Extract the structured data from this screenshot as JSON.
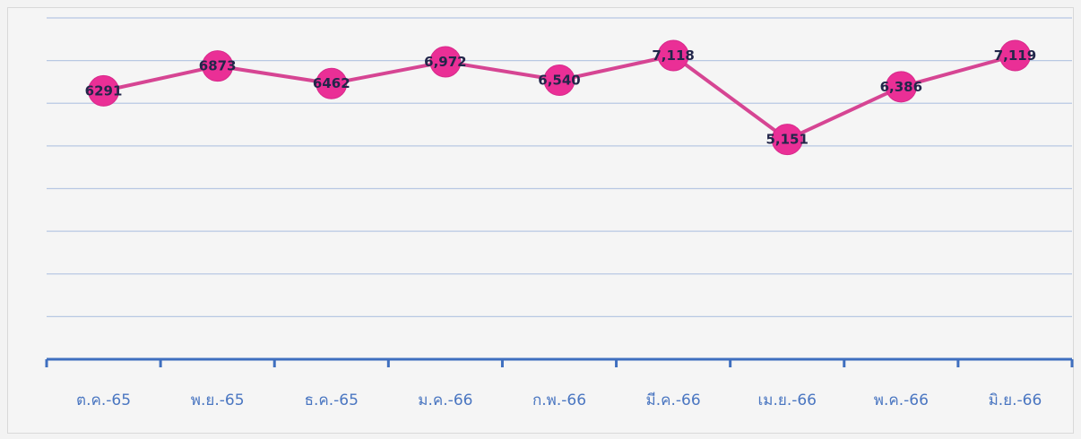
{
  "chart_data": {
    "type": "line",
    "categories": [
      "ต.ค.-65",
      "พ.ย.-65",
      "ธ.ค.-65",
      "ม.ค.-66",
      "ก.พ.-66",
      "มี.ค.-66",
      "เม.ย.-66",
      "พ.ค.-66",
      "มิ.ย.-66"
    ],
    "series": [
      {
        "values": [
          6291,
          6873,
          6462,
          6972,
          6540,
          7118,
          5151,
          6386,
          7119
        ],
        "labels": [
          "6291",
          "6873",
          "6462",
          "6,972",
          "6,540",
          "7,118",
          "5,151",
          "6,386",
          "7,119"
        ]
      }
    ],
    "ylim": [
      0,
      8000
    ],
    "grid": true,
    "legend": "none",
    "colors": {
      "line": "#d64593",
      "marker": "#ea2f96",
      "axis": "#3f6fbf",
      "grid": "#b8c8e3",
      "tick_label": "#4a76c1",
      "data_label": "#22264a"
    }
  }
}
